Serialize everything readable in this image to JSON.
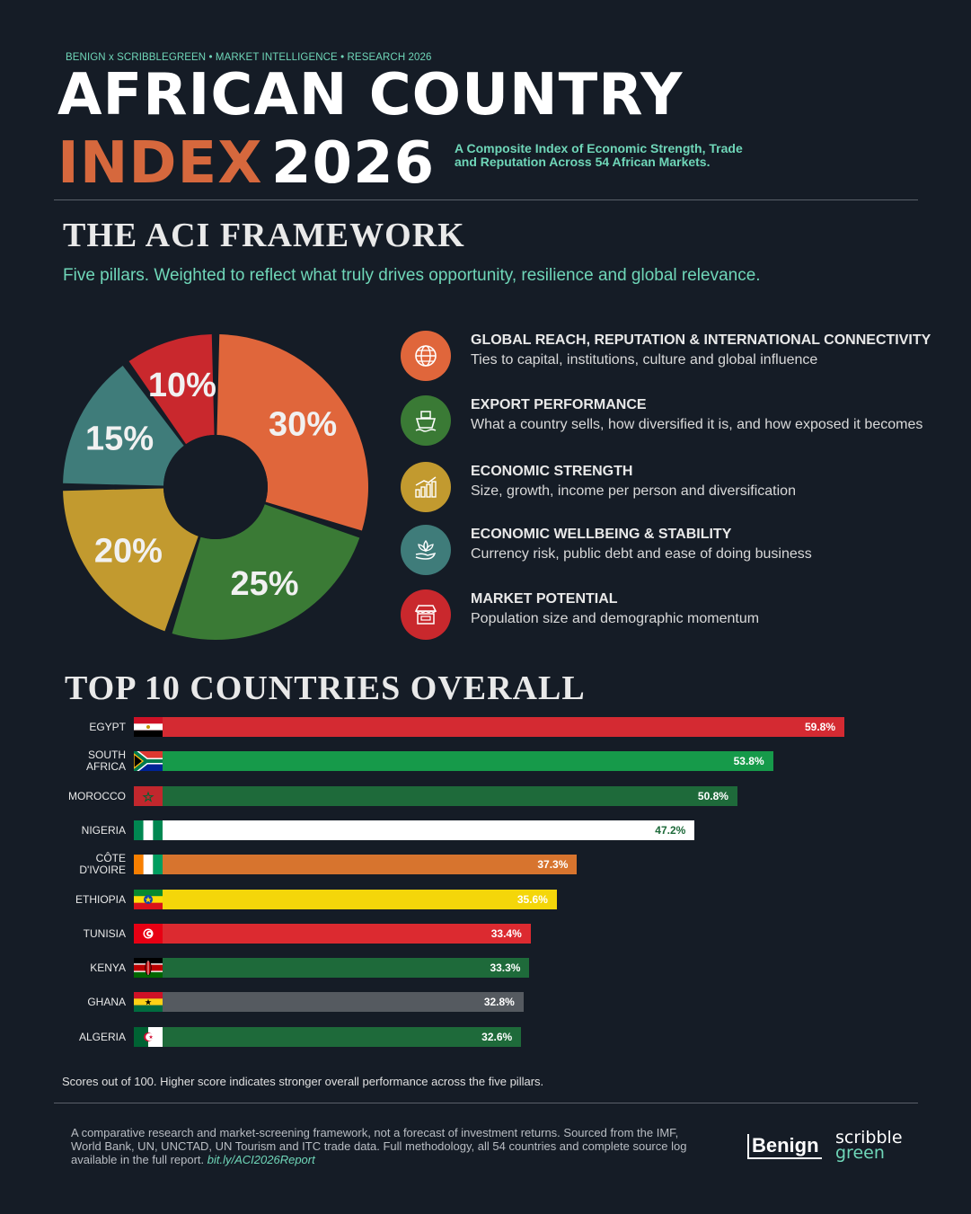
{
  "header": {
    "kicker": "BENIGN x SCRIBBLEGREEN • MARKET INTELLIGENCE • RESEARCH 2026",
    "title_line1": "AFRICAN COUNTRY",
    "title_line2a": "INDEX",
    "title_line2b": "2026",
    "subtitle": "A Composite Index of Economic Strength, Trade and Reputation Across 54 African Markets."
  },
  "framework": {
    "heading": "THE ACI FRAMEWORK",
    "tagline": "Five pillars. Weighted to reflect what truly drives opportunity, resilience and global relevance.",
    "pillars": [
      {
        "title": "GLOBAL REACH, REPUTATION & INTERNATIONAL CONNECTIVITY",
        "desc": "Ties to capital, institutions, culture and global influence",
        "color": "#e0663b",
        "icon": "globe-icon"
      },
      {
        "title": "EXPORT PERFORMANCE",
        "desc": "What a country sells, how diversified it is, and how exposed it becomes",
        "color": "#3a7a35",
        "icon": "ship-icon"
      },
      {
        "title": "ECONOMIC STRENGTH",
        "desc": "Size, growth, income per person and diversification",
        "color": "#c29a2f",
        "icon": "growth-chart-icon"
      },
      {
        "title": "ECONOMIC WELLBEING & STABILITY",
        "desc": "Currency risk, public debt and ease of doing business",
        "color": "#3f7c7a",
        "icon": "lotus-hand-icon"
      },
      {
        "title": "MARKET POTENTIAL",
        "desc": "Population size and demographic momentum",
        "color": "#c9282d",
        "icon": "market-stall-icon"
      }
    ]
  },
  "top10": {
    "heading": "TOP 10 COUNTRIES OVERALL",
    "footnote": "Scores out of 100. Higher score indicates stronger overall performance across the five pillars."
  },
  "chart_data": [
    {
      "type": "pie",
      "labels": [
        "30%",
        "25%",
        "20%",
        "15%",
        "10%"
      ],
      "values": [
        30,
        25,
        20,
        15,
        10
      ],
      "colors": [
        "#e0663b",
        "#3a7a35",
        "#c29a2f",
        "#3f7c7a",
        "#c9282d"
      ]
    },
    {
      "type": "bar",
      "orientation": "horizontal",
      "categories": [
        "EGYPT",
        "SOUTH AFRICA",
        "MOROCCO",
        "NIGERIA",
        "CÔTE D'IVOIRE",
        "ETHIOPIA",
        "TUNISIA",
        "KENYA",
        "GHANA",
        "ALGERIA"
      ],
      "values": [
        59.8,
        53.8,
        50.8,
        47.2,
        37.3,
        35.6,
        33.4,
        33.3,
        32.8,
        32.6
      ],
      "value_labels": [
        "59.8%",
        "53.8%",
        "50.8%",
        "47.2%",
        "37.3%",
        "35.6%",
        "33.4%",
        "33.3%",
        "32.8%",
        "32.6%"
      ],
      "bar_colors": [
        "#d42a32",
        "#169a4a",
        "#1e6a3a",
        "#ffffff",
        "#d7742e",
        "#f4d60a",
        "#dc2a30",
        "#1e6a3a",
        "#555a60",
        "#1e6a3a"
      ],
      "label_colors": [
        "#ffffff",
        "#ffffff",
        "#ffffff",
        "#1e6a3a",
        "#ffffff",
        "#ffffff",
        "#ffffff",
        "#ffffff",
        "#ffffff",
        "#ffffff"
      ],
      "flags": [
        "egypt",
        "south-africa",
        "morocco",
        "nigeria",
        "cote-divoire",
        "ethiopia",
        "tunisia",
        "kenya",
        "ghana",
        "algeria"
      ],
      "xlim": [
        0,
        100
      ]
    }
  ],
  "footer": {
    "disclaimer": "A comparative research and market-screening framework, not a forecast of investment returns. Sourced from the IMF, World Bank, UN, UNCTAD, UN Tourism and ITC trade data. Full methodology, all 54 countries and complete source log available in the full report.",
    "link": "bit.ly/ACI2026Report",
    "logo_benign": "Benign",
    "logo_scribble": "scribble",
    "logo_green": "green"
  }
}
